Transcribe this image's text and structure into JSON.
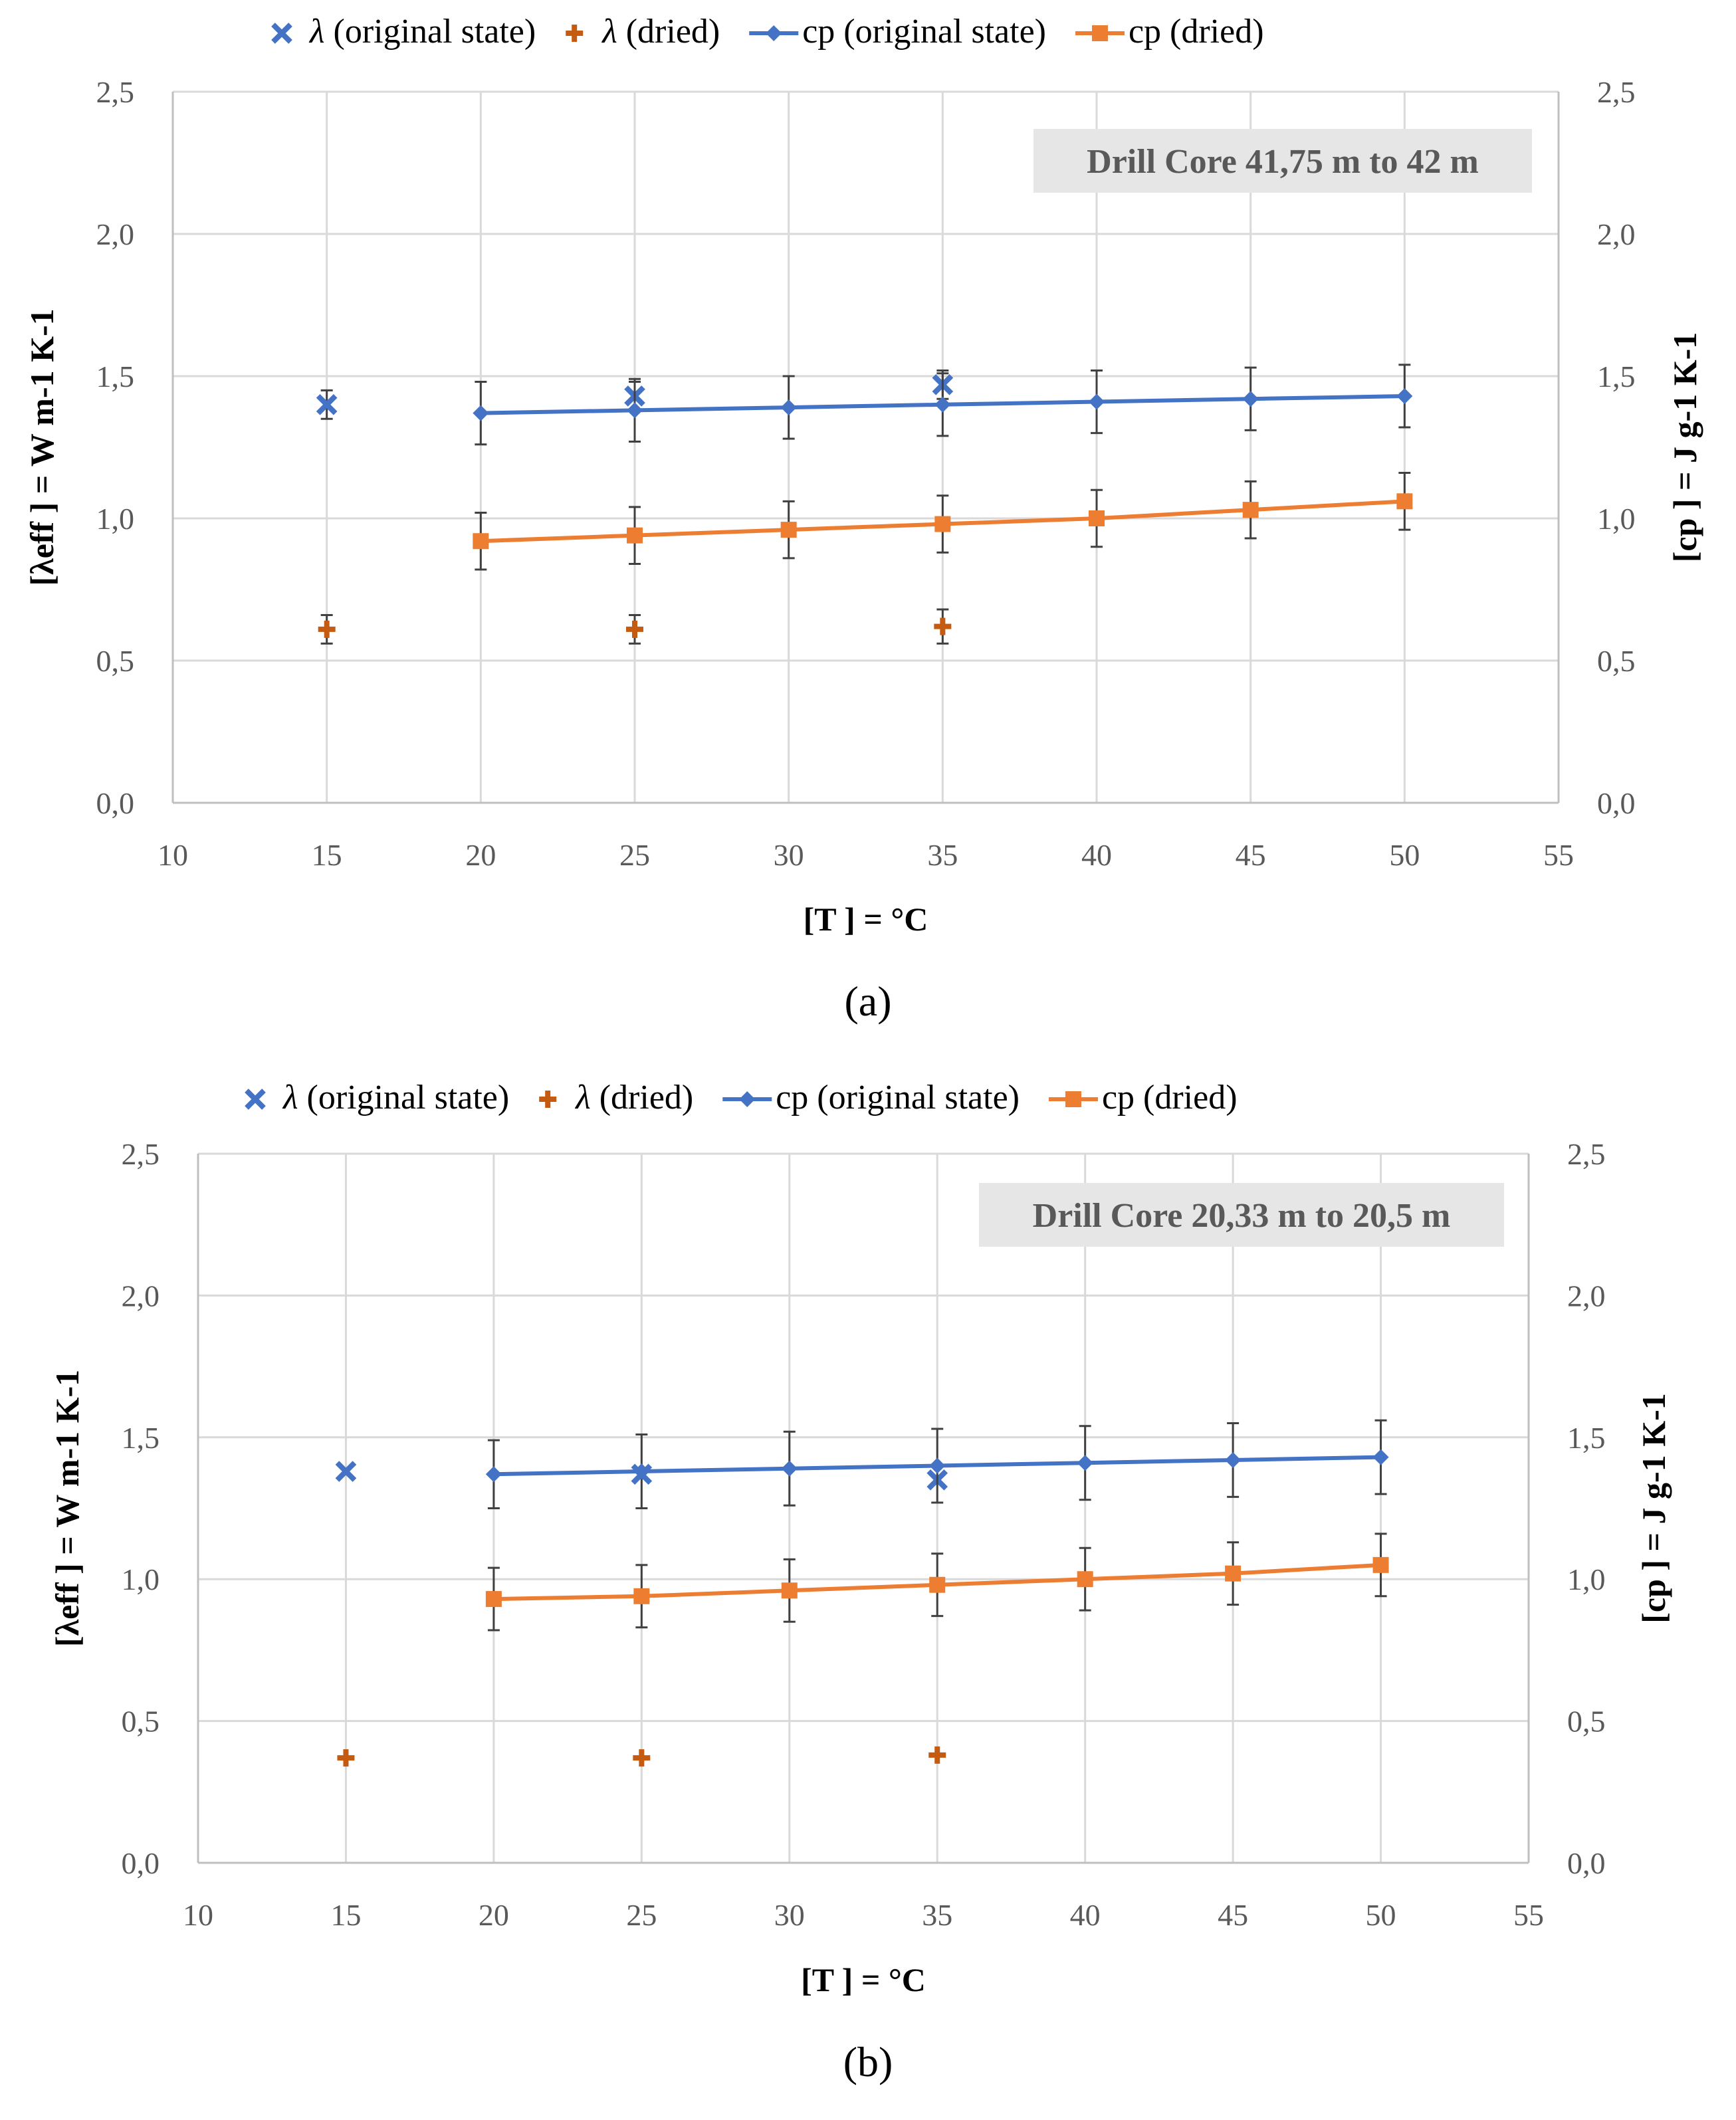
{
  "colors": {
    "blue": "#4472C4",
    "orange": "#ED7D31",
    "dark_orange": "#C55A11",
    "grid": "#D9D9D9",
    "annot_bg": "#E7E6E6"
  },
  "chart_data": [
    {
      "type": "scatter",
      "panel_label": "(a)",
      "annotation": "Drill Core 41,75 m to 42 m",
      "xlabel": "[T ] = °C",
      "ylabel_left": "[λeff ] = W m-1 K-1",
      "ylabel_right": "[cp ] = J g-1 K-1",
      "xlim": [
        10,
        55
      ],
      "ylim": [
        0,
        2.5
      ],
      "x_ticks": [
        "10",
        "15",
        "20",
        "25",
        "30",
        "35",
        "40",
        "45",
        "50",
        "55"
      ],
      "y_ticks": [
        "0,0",
        "0,5",
        "1,0",
        "1,5",
        "2,0",
        "2,5"
      ],
      "legend": [
        {
          "symbol": "x",
          "greek": "λ",
          "text": " (original state)"
        },
        {
          "symbol": "plus",
          "greek": "λ",
          "text": " (dried)"
        },
        {
          "symbol": "line-diamond",
          "greek": "",
          "text": "cp (original state)"
        },
        {
          "symbol": "line-square",
          "greek": "",
          "text": "cp (dried)"
        }
      ],
      "series": [
        {
          "name": "λ (original state)",
          "marker": "x",
          "x": [
            15,
            25,
            35
          ],
          "y": [
            1.4,
            1.43,
            1.47
          ],
          "err": [
            0.05,
            0.05,
            0.05
          ]
        },
        {
          "name": "λ (dried)",
          "marker": "plus",
          "x": [
            15,
            25,
            35
          ],
          "y": [
            0.61,
            0.61,
            0.62
          ],
          "err": [
            0.05,
            0.05,
            0.06
          ]
        },
        {
          "name": "cp (original state)",
          "marker": "diamond",
          "x": [
            20,
            25,
            30,
            35,
            40,
            45,
            50
          ],
          "y": [
            1.37,
            1.38,
            1.39,
            1.4,
            1.41,
            1.42,
            1.43
          ],
          "err": [
            0.11,
            0.11,
            0.11,
            0.11,
            0.11,
            0.11,
            0.11
          ]
        },
        {
          "name": "cp (dried)",
          "marker": "square",
          "x": [
            20,
            25,
            30,
            35,
            40,
            45,
            50
          ],
          "y": [
            0.92,
            0.94,
            0.96,
            0.98,
            1.0,
            1.03,
            1.06
          ],
          "err": [
            0.1,
            0.1,
            0.1,
            0.1,
            0.1,
            0.1,
            0.1
          ]
        }
      ]
    },
    {
      "type": "scatter",
      "panel_label": "(b)",
      "annotation": "Drill Core 20,33 m to 20,5 m",
      "xlabel": "[T ] = °C",
      "ylabel_left": "[λeff ] = W m-1 K-1",
      "ylabel_right": "[cp ] = J g-1 K-1",
      "xlim": [
        10,
        55
      ],
      "ylim": [
        0,
        2.5
      ],
      "x_ticks": [
        "10",
        "15",
        "20",
        "25",
        "30",
        "35",
        "40",
        "45",
        "50",
        "55"
      ],
      "y_ticks": [
        "0,0",
        "0,5",
        "1,0",
        "1,5",
        "2,0",
        "2,5"
      ],
      "legend": [
        {
          "symbol": "x",
          "greek": "λ",
          "text": " (original state)"
        },
        {
          "symbol": "plus",
          "greek": "λ",
          "text": " (dried)"
        },
        {
          "symbol": "line-diamond",
          "greek": "",
          "text": "cp (original state)"
        },
        {
          "symbol": "line-square",
          "greek": "",
          "text": "cp (dried)"
        }
      ],
      "series": [
        {
          "name": "λ (original state)",
          "marker": "x",
          "x": [
            15,
            25,
            35
          ],
          "y": [
            1.38,
            1.37,
            1.35
          ],
          "err": [
            0.0,
            0.0,
            0.0
          ]
        },
        {
          "name": "λ (dried)",
          "marker": "plus",
          "x": [
            15,
            25,
            35
          ],
          "y": [
            0.37,
            0.37,
            0.38
          ],
          "err": [
            0.0,
            0.0,
            0.0
          ]
        },
        {
          "name": "cp (original state)",
          "marker": "diamond",
          "x": [
            20,
            25,
            30,
            35,
            40,
            45,
            50
          ],
          "y": [
            1.37,
            1.38,
            1.39,
            1.4,
            1.41,
            1.42,
            1.43
          ],
          "err": [
            0.12,
            0.13,
            0.13,
            0.13,
            0.13,
            0.13,
            0.13
          ]
        },
        {
          "name": "cp (dried)",
          "marker": "square",
          "x": [
            20,
            25,
            30,
            35,
            40,
            45,
            50
          ],
          "y": [
            0.93,
            0.94,
            0.96,
            0.98,
            1.0,
            1.02,
            1.05
          ],
          "err": [
            0.11,
            0.11,
            0.11,
            0.11,
            0.11,
            0.11,
            0.11
          ]
        }
      ]
    }
  ]
}
